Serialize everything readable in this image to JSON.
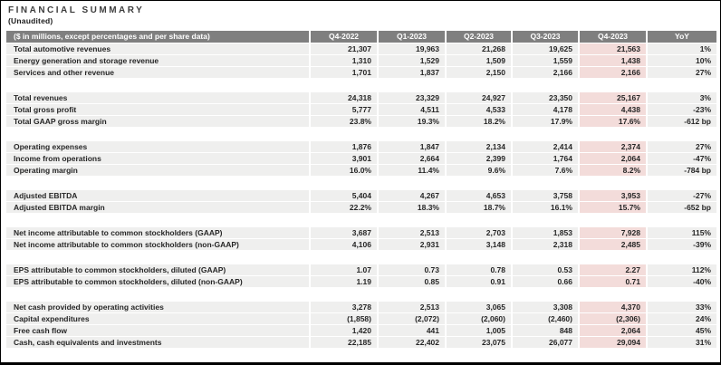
{
  "title": "FINANCIAL SUMMARY",
  "subtitle": "(Unaudited)",
  "colors": {
    "header_bg": "#7f7f7f",
    "header_text": "#ffffff",
    "row_bg": "#efefee",
    "highlight_bg": "#f3dcda",
    "text": "#262626",
    "frame": "#000000"
  },
  "table": {
    "header": [
      "($ in millions, except percentages and per share data)",
      "Q4-2022",
      "Q1-2023",
      "Q2-2023",
      "Q3-2023",
      "Q4-2023",
      "YoY"
    ],
    "highlight_column": "Q4-2023",
    "highlight_value_index": 4,
    "sections": [
      {
        "rows": [
          {
            "label": "Total automotive revenues",
            "values": [
              "21,307",
              "19,963",
              "21,268",
              "19,625",
              "21,563",
              "1%"
            ]
          },
          {
            "label": "Energy generation and storage revenue",
            "values": [
              "1,310",
              "1,529",
              "1,509",
              "1,559",
              "1,438",
              "10%"
            ]
          },
          {
            "label": "Services and other revenue",
            "values": [
              "1,701",
              "1,837",
              "2,150",
              "2,166",
              "2,166",
              "27%"
            ]
          }
        ]
      },
      {
        "rows": [
          {
            "label": "Total revenues",
            "values": [
              "24,318",
              "23,329",
              "24,927",
              "23,350",
              "25,167",
              "3%"
            ]
          },
          {
            "label": "Total gross profit",
            "values": [
              "5,777",
              "4,511",
              "4,533",
              "4,178",
              "4,438",
              "-23%"
            ]
          },
          {
            "label": "Total GAAP gross margin",
            "values": [
              "23.8%",
              "19.3%",
              "18.2%",
              "17.9%",
              "17.6%",
              "-612 bp"
            ]
          }
        ]
      },
      {
        "rows": [
          {
            "label": "Operating expenses",
            "values": [
              "1,876",
              "1,847",
              "2,134",
              "2,414",
              "2,374",
              "27%"
            ]
          },
          {
            "label": "Income from operations",
            "values": [
              "3,901",
              "2,664",
              "2,399",
              "1,764",
              "2,064",
              "-47%"
            ]
          },
          {
            "label": "Operating margin",
            "values": [
              "16.0%",
              "11.4%",
              "9.6%",
              "7.6%",
              "8.2%",
              "-784 bp"
            ]
          }
        ]
      },
      {
        "rows": [
          {
            "label": "Adjusted EBITDA",
            "values": [
              "5,404",
              "4,267",
              "4,653",
              "3,758",
              "3,953",
              "-27%"
            ]
          },
          {
            "label": "Adjusted EBITDA margin",
            "values": [
              "22.2%",
              "18.3%",
              "18.7%",
              "16.1%",
              "15.7%",
              "-652 bp"
            ]
          }
        ]
      },
      {
        "rows": [
          {
            "label": "Net income attributable to common stockholders (GAAP)",
            "values": [
              "3,687",
              "2,513",
              "2,703",
              "1,853",
              "7,928",
              "115%"
            ]
          },
          {
            "label": "Net income attributable to common stockholders (non-GAAP)",
            "values": [
              "4,106",
              "2,931",
              "3,148",
              "2,318",
              "2,485",
              "-39%"
            ]
          }
        ]
      },
      {
        "rows": [
          {
            "label": "EPS attributable to common stockholders, diluted (GAAP)",
            "values": [
              "1.07",
              "0.73",
              "0.78",
              "0.53",
              "2.27",
              "112%"
            ]
          },
          {
            "label": "EPS attributable to common stockholders, diluted (non-GAAP)",
            "values": [
              "1.19",
              "0.85",
              "0.91",
              "0.66",
              "0.71",
              "-40%"
            ]
          }
        ]
      },
      {
        "rows": [
          {
            "label": "Net cash provided by operating activities",
            "values": [
              "3,278",
              "2,513",
              "3,065",
              "3,308",
              "4,370",
              "33%"
            ]
          },
          {
            "label": "Capital expenditures",
            "values": [
              "(1,858)",
              "(2,072)",
              "(2,060)",
              "(2,460)",
              "(2,306)",
              "24%"
            ]
          },
          {
            "label": "Free cash flow",
            "values": [
              "1,420",
              "441",
              "1,005",
              "848",
              "2,064",
              "45%"
            ]
          },
          {
            "label": "Cash, cash equivalents and investments",
            "values": [
              "22,185",
              "22,402",
              "23,075",
              "26,077",
              "29,094",
              "31%"
            ]
          }
        ]
      }
    ]
  }
}
